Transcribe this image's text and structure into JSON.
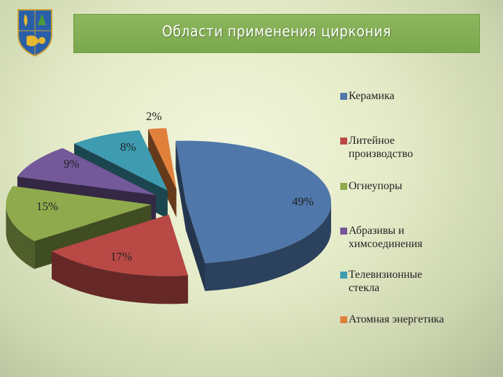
{
  "title": "Области применения циркония",
  "chart_data": {
    "type": "pie",
    "title": "Области применения циркония",
    "legend_position": "right",
    "slices": [
      {
        "label": "Керамика",
        "value": 49,
        "display": "49%",
        "color": "#4f77aa"
      },
      {
        "label": "Литейное производство",
        "value": 17,
        "display": "17%",
        "color": "#b94945"
      },
      {
        "label": "Огнеупоры",
        "value": 15,
        "display": "15%",
        "color": "#8faa4c"
      },
      {
        "label": "Абразивы и химсоединения",
        "value": 9,
        "display": "9%",
        "color": "#73589a"
      },
      {
        "label": "Телевизионные стекла",
        "value": 8,
        "display": "8%",
        "color": "#3e9bb0"
      },
      {
        "label": "Атомная энергетика",
        "value": 2,
        "display": "2%",
        "color": "#e0803b"
      }
    ]
  },
  "legend": [
    {
      "text": "Керамика",
      "color": "#4f77aa"
    },
    {
      "text": "Литейное\nпроизводство",
      "color": "#b94945"
    },
    {
      "text": "Огнеупоры",
      "color": "#8faa4c"
    },
    {
      "text": "Абразивы и\nхимсоединения",
      "color": "#73589a"
    },
    {
      "text": "Телевизионные\nстекла",
      "color": "#3e9bb0"
    },
    {
      "text": "Атомная энергетика",
      "color": "#e0803b"
    }
  ]
}
